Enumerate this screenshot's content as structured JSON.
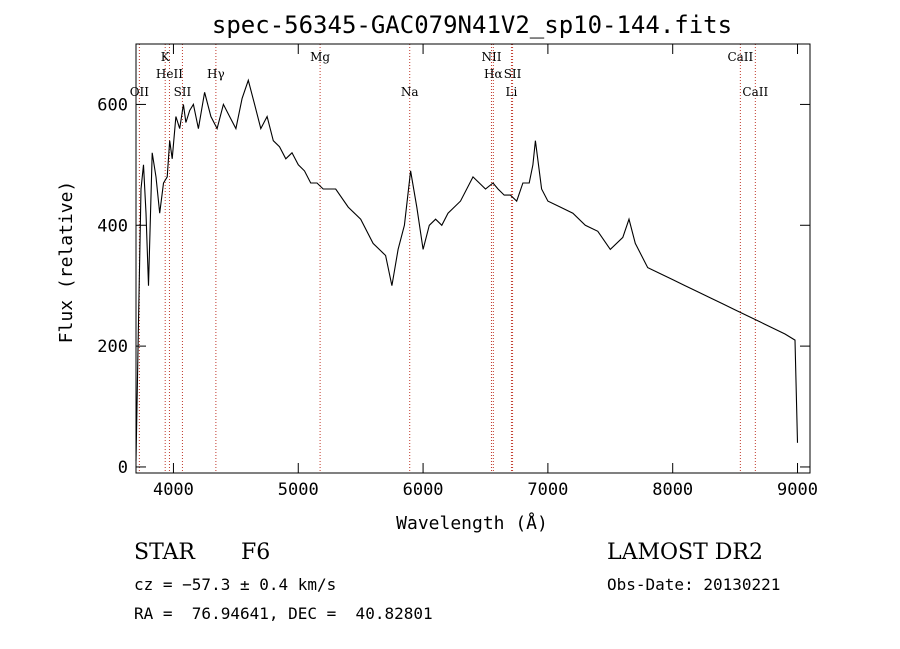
{
  "chart_data": {
    "type": "line",
    "title": "spec-56345-GAC079N41V2_sp10-144.fits",
    "xlabel": "Wavelength (Å)",
    "ylabel": "Flux (relative)",
    "xlim": [
      3700,
      9100
    ],
    "ylim": [
      -10,
      700
    ],
    "x_ticks": [
      4000,
      5000,
      6000,
      7000,
      8000,
      9000
    ],
    "y_ticks": [
      0,
      200,
      400,
      600
    ],
    "grid": false,
    "series": [
      {
        "color": "#000000",
        "x": [
          3700,
          3720,
          3740,
          3760,
          3780,
          3800,
          3830,
          3860,
          3890,
          3920,
          3950,
          3970,
          3990,
          4020,
          4050,
          4080,
          4100,
          4130,
          4160,
          4200,
          4250,
          4300,
          4350,
          4400,
          4450,
          4500,
          4550,
          4600,
          4650,
          4700,
          4750,
          4800,
          4850,
          4900,
          4950,
          5000,
          5050,
          5100,
          5150,
          5200,
          5300,
          5400,
          5500,
          5600,
          5700,
          5750,
          5800,
          5850,
          5900,
          5950,
          6000,
          6050,
          6100,
          6150,
          6200,
          6300,
          6400,
          6500,
          6560,
          6600,
          6650,
          6700,
          6750,
          6800,
          6850,
          6880,
          6900,
          6950,
          7000,
          7100,
          7200,
          7300,
          7400,
          7500,
          7600,
          7650,
          7700,
          7800,
          7900,
          8000,
          8100,
          8200,
          8300,
          8400,
          8500,
          8600,
          8700,
          8800,
          8900,
          8980,
          9000
        ],
        "y": [
          10,
          240,
          460,
          500,
          420,
          300,
          520,
          480,
          420,
          470,
          480,
          540,
          510,
          580,
          560,
          600,
          570,
          590,
          600,
          560,
          620,
          580,
          560,
          600,
          580,
          560,
          610,
          640,
          600,
          560,
          580,
          540,
          530,
          510,
          520,
          500,
          490,
          470,
          470,
          460,
          460,
          430,
          410,
          370,
          350,
          300,
          360,
          400,
          490,
          430,
          360,
          400,
          410,
          400,
          420,
          440,
          480,
          460,
          470,
          460,
          450,
          450,
          440,
          470,
          470,
          500,
          540,
          460,
          440,
          430,
          420,
          400,
          390,
          360,
          380,
          410,
          370,
          330,
          320,
          310,
          300,
          290,
          280,
          270,
          260,
          250,
          240,
          230,
          220,
          210,
          40
        ]
      }
    ],
    "line_markers": [
      {
        "label": "OII",
        "x": 3727,
        "row": 3
      },
      {
        "label": "K",
        "x": 3934,
        "row": 1
      },
      {
        "label": "HeII",
        "x": 3968,
        "row": 2
      },
      {
        "label": "SII",
        "x": 4072,
        "row": 3
      },
      {
        "label": "Hγ",
        "x": 4340,
        "row": 2
      },
      {
        "label": "Mg",
        "x": 5175,
        "row": 1
      },
      {
        "label": "Na",
        "x": 5893,
        "row": 3
      },
      {
        "label": "NII",
        "x": 6548,
        "row": 1
      },
      {
        "label": "Hα",
        "x": 6563,
        "row": 2
      },
      {
        "label": "SII",
        "x": 6717,
        "row": 2
      },
      {
        "label": "Li",
        "x": 6708,
        "row": 3
      },
      {
        "label": "CaII",
        "x": 8542,
        "row": 1
      },
      {
        "label": "CaII",
        "x": 8662,
        "row": 3
      }
    ]
  },
  "info": {
    "object_type": "STAR",
    "subclass": "F6",
    "survey": "LAMOST DR2",
    "cz": "cz = −57.3 ± 0.4 km/s",
    "obs_date": "Obs-Date: 20130221",
    "coords": "RA =  76.94641, DEC =  40.82801"
  }
}
